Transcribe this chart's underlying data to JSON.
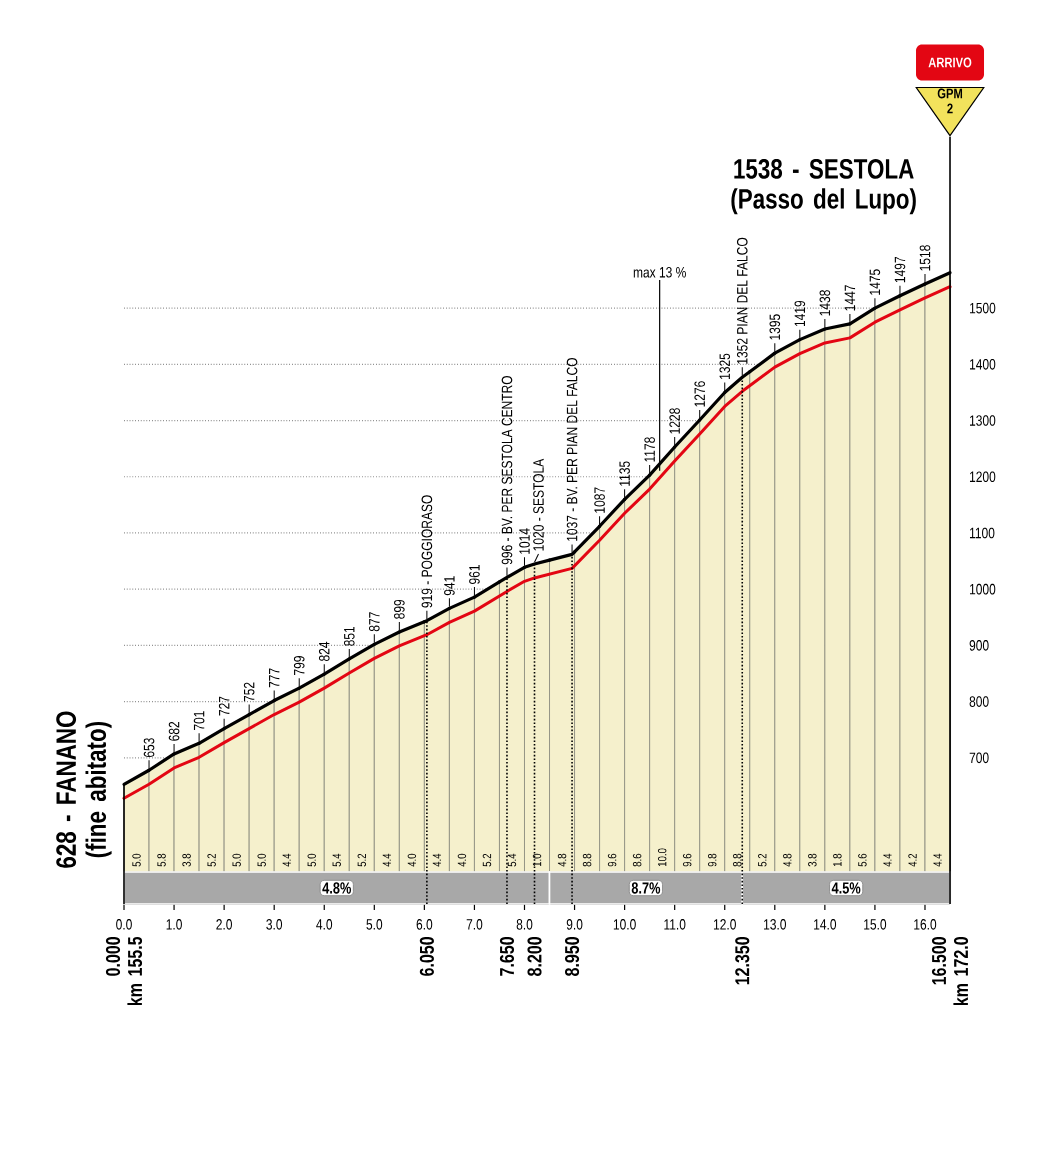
{
  "chart_data": {
    "type": "line",
    "color": "#e30613",
    "x": [
      0,
      0.5,
      1,
      1.5,
      2,
      2.5,
      3,
      3.5,
      4,
      4.5,
      5,
      5.5,
      6.05,
      6.5,
      7,
      7.65,
      8,
      8.2,
      8.95,
      9.5,
      10,
      10.5,
      11,
      11.5,
      12,
      12.35,
      13,
      13.5,
      14,
      14.5,
      15,
      15.5,
      16,
      16.5
    ],
    "values": [
      628,
      653,
      682,
      701,
      727,
      752,
      777,
      799,
      824,
      851,
      877,
      899,
      919,
      941,
      961,
      996,
      1014,
      1020,
      1037,
      1087,
      1135,
      1178,
      1228,
      1276,
      1325,
      1352,
      1395,
      1419,
      1438,
      1447,
      1475,
      1497,
      1518,
      1538
    ],
    "value_labels": [
      "628 - FANANO (fine abitato)",
      "653",
      "682",
      "701",
      "727",
      "752",
      "777",
      "799",
      "824",
      "851",
      "877",
      "899",
      "919 - POGGIORASO",
      "941",
      "961",
      "996 - BV. PER SESTOLA CENTRO",
      "1014",
      "1020 - SESTOLA",
      "1037 - BV. PER PIAN DEL FALCO",
      "1087",
      "1135",
      "1178",
      "1228",
      "1276",
      "1325",
      "1352 PIAN DEL FALCO",
      "1395",
      "1419",
      "1438",
      "1447",
      "1475",
      "1497",
      "1518",
      "1538 - SESTOLA (Passo del Lupo)"
    ],
    "xlim": [
      0,
      16.5
    ],
    "xticks": [
      {
        "value": 0,
        "label": "0.0"
      },
      {
        "value": 1,
        "label": "1.0"
      },
      {
        "value": 2,
        "label": "2.0"
      },
      {
        "value": 3,
        "label": "3.0"
      },
      {
        "value": 4,
        "label": "4.0"
      },
      {
        "value": 5,
        "label": "5.0"
      },
      {
        "value": 6,
        "label": "6.0"
      },
      {
        "value": 7,
        "label": "7.0"
      },
      {
        "value": 8,
        "label": "8.0"
      },
      {
        "value": 9,
        "label": "9.0"
      },
      {
        "value": 10,
        "label": "10.0"
      },
      {
        "value": 11,
        "label": "11.0"
      },
      {
        "value": 12,
        "label": "12.0"
      },
      {
        "value": 13,
        "label": "13.0"
      },
      {
        "value": 14,
        "label": "14.0"
      },
      {
        "value": 15,
        "label": "15.0"
      },
      {
        "value": 16,
        "label": "16.0"
      }
    ],
    "ylim": [
      440,
      1550
    ],
    "yticks": [
      700,
      800,
      900,
      1000,
      1100,
      1200,
      1300,
      1400,
      1500
    ],
    "grid": "y",
    "ref_lines": [
      {
        "axis": "x",
        "value": 0,
        "label": "0.000 km 155.5",
        "line_style": "solid"
      },
      {
        "axis": "x",
        "value": 6.05,
        "label": "6.050",
        "line_style": "dotted"
      },
      {
        "axis": "x",
        "value": 7.65,
        "label": "7.650",
        "line_style": "dotted"
      },
      {
        "axis": "x",
        "value": 8.2,
        "label": "8.200",
        "line_style": "dotted"
      },
      {
        "axis": "x",
        "value": 8.95,
        "label": "8.950",
        "line_style": "dotted"
      },
      {
        "axis": "x",
        "value": 12.35,
        "label": "12.350",
        "line_style": "dotted"
      },
      {
        "axis": "x",
        "value": 16.5,
        "label": "16.500 km 172.0",
        "line_style": "solid"
      }
    ],
    "bands": [
      {
        "axis": "x",
        "from": 0,
        "to": 0.5,
        "label": "5.0",
        "color": "#f5f0cc"
      },
      {
        "axis": "x",
        "from": 0.5,
        "to": 1,
        "label": "5.8",
        "color": "#f5f0cc"
      },
      {
        "axis": "x",
        "from": 1,
        "to": 1.5,
        "label": "3.8",
        "color": "#f5f0cc"
      },
      {
        "axis": "x",
        "from": 1.5,
        "to": 2,
        "label": "5.2",
        "color": "#f5f0cc"
      },
      {
        "axis": "x",
        "from": 2,
        "to": 2.5,
        "label": "5.0",
        "color": "#f5f0cc"
      },
      {
        "axis": "x",
        "from": 2.5,
        "to": 3,
        "label": "5.0",
        "color": "#f5f0cc"
      },
      {
        "axis": "x",
        "from": 3,
        "to": 3.5,
        "label": "4.4",
        "color": "#f5f0cc"
      },
      {
        "axis": "x",
        "from": 3.5,
        "to": 4,
        "label": "5.0",
        "color": "#f5f0cc"
      },
      {
        "axis": "x",
        "from": 4,
        "to": 4.5,
        "label": "5.4",
        "color": "#f5f0cc"
      },
      {
        "axis": "x",
        "from": 4.5,
        "to": 5,
        "label": "5.2",
        "color": "#f5f0cc"
      },
      {
        "axis": "x",
        "from": 5,
        "to": 5.5,
        "label": "4.4",
        "color": "#f5f0cc"
      },
      {
        "axis": "x",
        "from": 5.5,
        "to": 6,
        "label": "4.0",
        "color": "#f5f0cc"
      },
      {
        "axis": "x",
        "from": 6,
        "to": 6.5,
        "label": "4.4",
        "color": "#f5f0cc"
      },
      {
        "axis": "x",
        "from": 6.5,
        "to": 7,
        "label": "4.0",
        "color": "#f5f0cc"
      },
      {
        "axis": "x",
        "from": 7,
        "to": 7.5,
        "label": "5.2",
        "color": "#f5f0cc"
      },
      {
        "axis": "x",
        "from": 7.5,
        "to": 8,
        "label": "5.4",
        "color": "#f5f0cc"
      },
      {
        "axis": "x",
        "from": 8,
        "to": 8.5,
        "label": "1.0",
        "color": "#f5f0cc"
      },
      {
        "axis": "x",
        "from": 8.5,
        "to": 9,
        "label": "4.8",
        "color": "#f5f0cc"
      },
      {
        "axis": "x",
        "from": 9,
        "to": 9.5,
        "label": "8.8",
        "color": "#f5f0cc"
      },
      {
        "axis": "x",
        "from": 9.5,
        "to": 10,
        "label": "9.6",
        "color": "#f5f0cc"
      },
      {
        "axis": "x",
        "from": 10,
        "to": 10.5,
        "label": "8.6",
        "color": "#f5f0cc"
      },
      {
        "axis": "x",
        "from": 10.5,
        "to": 11,
        "label": "10.0",
        "color": "#f5f0cc"
      },
      {
        "axis": "x",
        "from": 11,
        "to": 11.5,
        "label": "9.6",
        "color": "#f5f0cc"
      },
      {
        "axis": "x",
        "from": 11.5,
        "to": 12,
        "label": "9.8",
        "color": "#f5f0cc"
      },
      {
        "axis": "x",
        "from": 12,
        "to": 12.5,
        "label": "8.8",
        "color": "#f5f0cc"
      },
      {
        "axis": "x",
        "from": 12.5,
        "to": 13,
        "label": "5.2",
        "color": "#f5f0cc"
      },
      {
        "axis": "x",
        "from": 13,
        "to": 13.5,
        "label": "4.8",
        "color": "#f5f0cc"
      },
      {
        "axis": "x",
        "from": 13.5,
        "to": 14,
        "label": "3.8",
        "color": "#f5f0cc"
      },
      {
        "axis": "x",
        "from": 14,
        "to": 14.5,
        "label": "1.8",
        "color": "#f5f0cc"
      },
      {
        "axis": "x",
        "from": 14.5,
        "to": 15,
        "label": "5.6",
        "color": "#f5f0cc"
      },
      {
        "axis": "x",
        "from": 15,
        "to": 15.5,
        "label": "4.4",
        "color": "#f5f0cc"
      },
      {
        "axis": "x",
        "from": 15.5,
        "to": 16,
        "label": "4.2",
        "color": "#f5f0cc"
      },
      {
        "axis": "x",
        "from": 16,
        "to": 16.5,
        "label": "4.4",
        "color": "#f5f0cc"
      },
      {
        "axis": "x",
        "from": 0,
        "to": 8.5,
        "label": "4.8%",
        "color": "#a8a8a8"
      },
      {
        "axis": "x",
        "from": 8.5,
        "to": 12.35,
        "label": "8.7%",
        "color": "#a8a8a8"
      },
      {
        "axis": "x",
        "from": 12.35,
        "to": 16.5,
        "label": "4.5%",
        "color": "#a8a8a8"
      }
    ],
    "annotations": [
      "ARRIVO",
      "GPM 2",
      {
        "text": "max 13 %",
        "x": 10.7,
        "y": 1198
      }
    ]
  }
}
